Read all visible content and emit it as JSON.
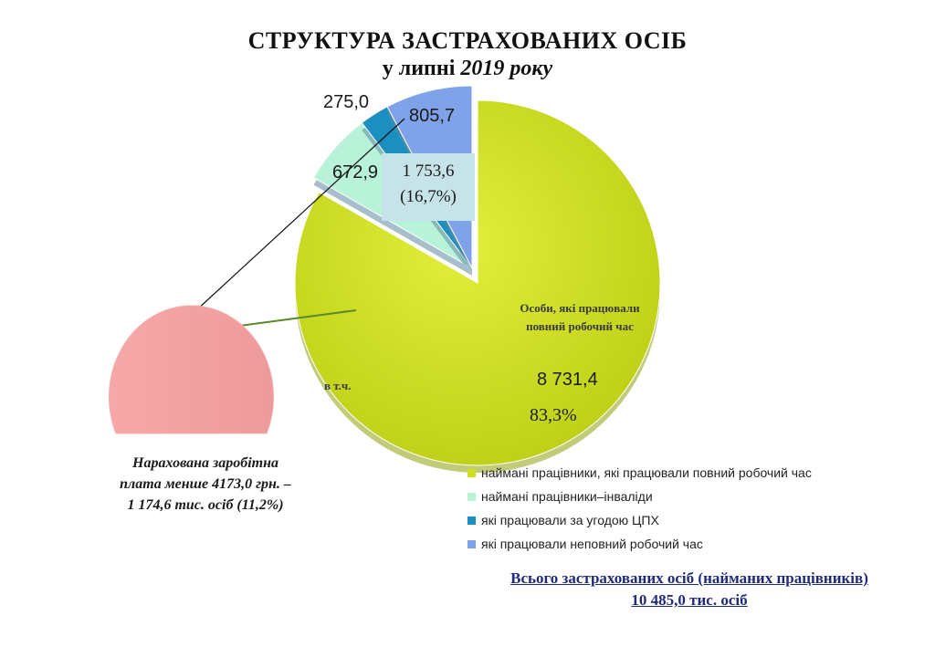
{
  "title": {
    "line1": "СТРУКТУРА ЗАСТРАХОВАНИХ ОСІБ",
    "line2_prefix": "у липні",
    "line2_year": "2019 року"
  },
  "chart_data": {
    "type": "pie",
    "slices": [
      {
        "label": "наймані працівники, які працювали повний робочий час",
        "value": 8731.4,
        "value_label": "8 731,4",
        "percent_label": "83,3%",
        "color": "#cfe01c"
      },
      {
        "label": "наймані працівники–інваліди",
        "value": 672.9,
        "value_label": "672,9",
        "color": "#b8f2d8"
      },
      {
        "label": "які працювали за угодою ЦПХ",
        "value": 275.0,
        "value_label": "275,0",
        "color": "#1a8fc0"
      },
      {
        "label": "які працювали неповний робочий час",
        "value": 805.7,
        "value_label": "805,7",
        "color": "#7fa2e8"
      }
    ],
    "inner_label": "Особи, які працювали повний робочий час",
    "group_callout": {
      "value_label": "1 753,6",
      "percent_label": "(16,7%)"
    },
    "in_that_number_label": "в т.ч.",
    "legend_position": "bottom-right"
  },
  "salary_note": {
    "line1": "Нарахована заробітна",
    "line2": "плата менше 4173,0 грн. –",
    "line3": "1 174,6 тис. осіб (11,2%)",
    "color": "#f4a3a3"
  },
  "total": {
    "line1": "Всього застрахованих  осіб (найманих працівників)",
    "line2": "10 485,0 тис. осіб"
  }
}
